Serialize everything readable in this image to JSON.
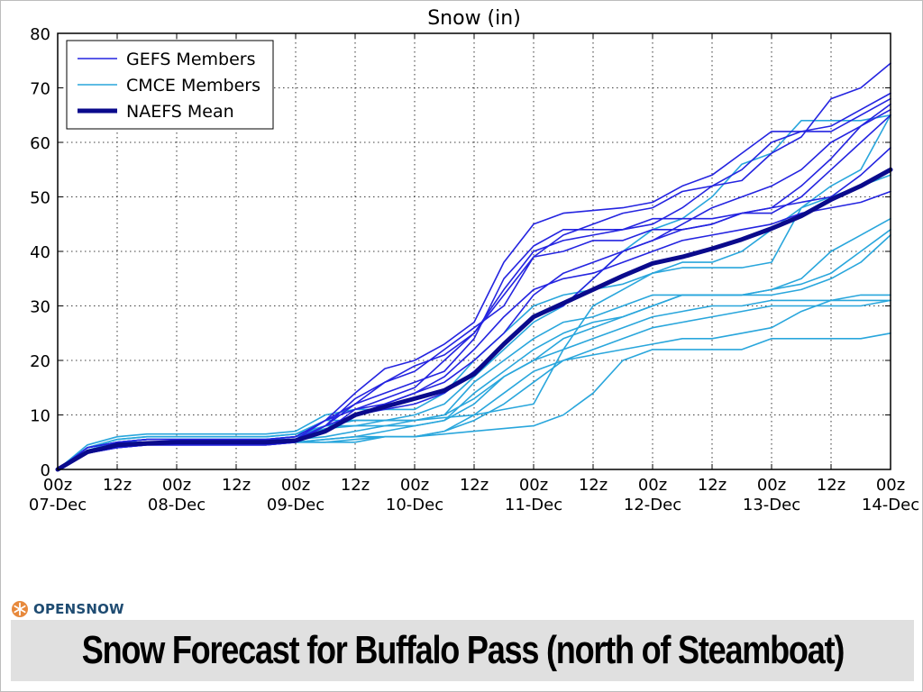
{
  "chart_data": {
    "type": "line",
    "title": "Snow (in)",
    "xlabel": "",
    "ylabel": "",
    "ylim": [
      0,
      80
    ],
    "yticks": [
      0,
      10,
      20,
      30,
      40,
      50,
      60,
      70,
      80
    ],
    "xlim": [
      0,
      28
    ],
    "xticks": [
      {
        "x": 0,
        "hour": "00z",
        "date": "07-Dec"
      },
      {
        "x": 2,
        "hour": "12z",
        "date": ""
      },
      {
        "x": 4,
        "hour": "00z",
        "date": "08-Dec"
      },
      {
        "x": 6,
        "hour": "12z",
        "date": ""
      },
      {
        "x": 8,
        "hour": "00z",
        "date": "09-Dec"
      },
      {
        "x": 10,
        "hour": "12z",
        "date": ""
      },
      {
        "x": 12,
        "hour": "00z",
        "date": "10-Dec"
      },
      {
        "x": 14,
        "hour": "12z",
        "date": ""
      },
      {
        "x": 16,
        "hour": "00z",
        "date": "11-Dec"
      },
      {
        "x": 18,
        "hour": "12z",
        "date": ""
      },
      {
        "x": 20,
        "hour": "00z",
        "date": "12-Dec"
      },
      {
        "x": 22,
        "hour": "12z",
        "date": ""
      },
      {
        "x": 24,
        "hour": "00z",
        "date": "13-Dec"
      },
      {
        "x": 26,
        "hour": "12z",
        "date": ""
      },
      {
        "x": 28,
        "hour": "00z",
        "date": "14-Dec"
      }
    ],
    "grid": true,
    "legend_position": "top-left",
    "legend": [
      {
        "label": "GEFS Members",
        "color": "#2424e0",
        "style": "thin"
      },
      {
        "label": "CMCE Members",
        "color": "#29a6dc",
        "style": "thin"
      },
      {
        "label": "NAEFS Mean",
        "color": "#0a0a8c",
        "style": "thick"
      }
    ],
    "x": [
      0,
      1,
      2,
      3,
      4,
      5,
      6,
      7,
      8,
      9,
      10,
      11,
      12,
      13,
      14,
      15,
      16,
      17,
      18,
      19,
      20,
      21,
      22,
      23,
      24,
      25,
      26,
      27,
      28
    ],
    "series": [
      {
        "name": "GEFS Members",
        "values": [
          0,
          4,
          5,
          5.5,
          5.5,
          5.5,
          5.5,
          5.5,
          6,
          9,
          14,
          18.5,
          20,
          23,
          27,
          38,
          45,
          47,
          47.5,
          48,
          49,
          52,
          54,
          58,
          62,
          62,
          62,
          65,
          68
        ]
      },
      {
        "name": "GEFS Members",
        "values": [
          0,
          3.5,
          4.5,
          5,
          5,
          5,
          5,
          5,
          5.5,
          8,
          13,
          16,
          19,
          21,
          25,
          33,
          40,
          42,
          43,
          44,
          45,
          48,
          52,
          55,
          60,
          62,
          63,
          66,
          69
        ]
      },
      {
        "name": "GEFS Members",
        "values": [
          0,
          3.5,
          4.5,
          5,
          5,
          5,
          5,
          5,
          5.5,
          9,
          12,
          16,
          18,
          22,
          26,
          30,
          39,
          43,
          45,
          47,
          48,
          51,
          52,
          53,
          58,
          61,
          68,
          70,
          74.5
        ]
      },
      {
        "name": "GEFS Members",
        "values": [
          0,
          3,
          4,
          4.5,
          4.5,
          4.5,
          4.5,
          4.5,
          5,
          8,
          12,
          14,
          16,
          18,
          24,
          35,
          41,
          44,
          44,
          44,
          46,
          46,
          46,
          47,
          48,
          52,
          57,
          63,
          67
        ]
      },
      {
        "name": "GEFS Members",
        "values": [
          0,
          4,
          5,
          5.5,
          5.5,
          5.5,
          5.5,
          5.5,
          6,
          9,
          11,
          13,
          15,
          20,
          25,
          32,
          39,
          40,
          42,
          42,
          44,
          44,
          45,
          47,
          47,
          50,
          55,
          60,
          65
        ]
      },
      {
        "name": "GEFS Members",
        "values": [
          0,
          3,
          4,
          4.5,
          4.5,
          4.5,
          4.5,
          4.5,
          5,
          7,
          11,
          12,
          14,
          16,
          20,
          25,
          32,
          36,
          38,
          40,
          42,
          44,
          45,
          47,
          48,
          49,
          50,
          54,
          59
        ]
      },
      {
        "name": "GEFS Members",
        "values": [
          0,
          3.5,
          4.5,
          5,
          5,
          5,
          5,
          5,
          5.5,
          8,
          10,
          12,
          14,
          17,
          22,
          28,
          33,
          35,
          36,
          38,
          40,
          42,
          43,
          44,
          45,
          47,
          48,
          49,
          51
        ]
      },
      {
        "name": "GEFS Members",
        "values": [
          0,
          3,
          4,
          4.5,
          4.5,
          4.5,
          4.5,
          4.5,
          5,
          7,
          10,
          11,
          12,
          14,
          18,
          23,
          28,
          30,
          35,
          40,
          42,
          45,
          48,
          50,
          52,
          55,
          60,
          63,
          66
        ]
      },
      {
        "name": "CMCE Members",
        "values": [
          0,
          4.5,
          6,
          6.5,
          6.5,
          6.5,
          6.5,
          6.5,
          7,
          10,
          11,
          11,
          11,
          14,
          20,
          25,
          30,
          32,
          33,
          34,
          36,
          37,
          37,
          37,
          38,
          48,
          52,
          55,
          65
        ]
      },
      {
        "name": "CMCE Members",
        "values": [
          0,
          4,
          5.5,
          6,
          6,
          6,
          6,
          6,
          6.5,
          9,
          9,
          9,
          10,
          12,
          17,
          22,
          27,
          30,
          35,
          40,
          44,
          46,
          50,
          56,
          58,
          64,
          64,
          64,
          65
        ]
      },
      {
        "name": "CMCE Members",
        "values": [
          0,
          3.5,
          5,
          5.5,
          5.5,
          5.5,
          5.5,
          5.5,
          6,
          8,
          9,
          9,
          9,
          9.5,
          10,
          11,
          12,
          22,
          30,
          33,
          36,
          38,
          38,
          40,
          44,
          48,
          50,
          52,
          54
        ]
      },
      {
        "name": "CMCE Members",
        "values": [
          0,
          4,
          5.5,
          6,
          6,
          6,
          6,
          6,
          6.5,
          8,
          8,
          8,
          8,
          9,
          14,
          18,
          22,
          25,
          27,
          28,
          30,
          32,
          32,
          32,
          33,
          35,
          40,
          43,
          46
        ]
      },
      {
        "name": "CMCE Members",
        "values": [
          0,
          3.5,
          5,
          5.5,
          5.5,
          5.5,
          5.5,
          5.5,
          6,
          7.5,
          8,
          9,
          9,
          10,
          13,
          17,
          20,
          22,
          24,
          26,
          28,
          29,
          30,
          30,
          31,
          31,
          31,
          31,
          31
        ]
      },
      {
        "name": "CMCE Members",
        "values": [
          0,
          3,
          4.5,
          5,
          5,
          5,
          5,
          5,
          5,
          5.5,
          6,
          6,
          6,
          7,
          10,
          14,
          18,
          20,
          22,
          24,
          26,
          27,
          28,
          29,
          30,
          30,
          30,
          30,
          31
        ]
      },
      {
        "name": "CMCE Members",
        "values": [
          0,
          4,
          5,
          5.5,
          5.5,
          5.5,
          5.5,
          5.5,
          5.5,
          6,
          7,
          8,
          9,
          10,
          16,
          20,
          24,
          27,
          28,
          30,
          32,
          32,
          32,
          32,
          33,
          34,
          36,
          40,
          44
        ]
      },
      {
        "name": "CMCE Members",
        "values": [
          0,
          3.5,
          5,
          5,
          5,
          5,
          5,
          5,
          5,
          5.5,
          6,
          7,
          8,
          9,
          12,
          17,
          20,
          24,
          26,
          28,
          30,
          32,
          32,
          32,
          32,
          33,
          35,
          38,
          43
        ]
      },
      {
        "name": "CMCE Members",
        "values": [
          0,
          3,
          4.5,
          5,
          5,
          5,
          5,
          5,
          5,
          5,
          5,
          6,
          6,
          6.5,
          7,
          7.5,
          8,
          10,
          14,
          20,
          22,
          22,
          22,
          22,
          24,
          24,
          24,
          24,
          25
        ]
      },
      {
        "name": "CMCE Members",
        "values": [
          0,
          3.5,
          4.5,
          5,
          5,
          5,
          5,
          5,
          5,
          5,
          5.5,
          6,
          6,
          7,
          9,
          12,
          16,
          20,
          21,
          22,
          23,
          24,
          24,
          25,
          26,
          29,
          31,
          32,
          32
        ]
      },
      {
        "name": "NAEFS Mean",
        "values": [
          0,
          3.2,
          4.5,
          4.8,
          5,
          5,
          5,
          5,
          5.3,
          7,
          10,
          11.5,
          13,
          14.5,
          17.5,
          23,
          28,
          30.5,
          33,
          35.5,
          37.8,
          39,
          40.5,
          42.2,
          44.2,
          46.5,
          49.5,
          52,
          55
        ]
      }
    ]
  },
  "footer": {
    "brand": "OPENSNOW",
    "brand_icon": "snowflake-icon",
    "title": "Snow Forecast for Buffalo Pass (north of Steamboat)"
  },
  "colors": {
    "gefs": "#2424e0",
    "cmce": "#29a6dc",
    "mean": "#0a0a8c",
    "brand": "#1f4c72",
    "brand_icon": "#e7893c",
    "footer_bg": "#e0e0e0"
  }
}
